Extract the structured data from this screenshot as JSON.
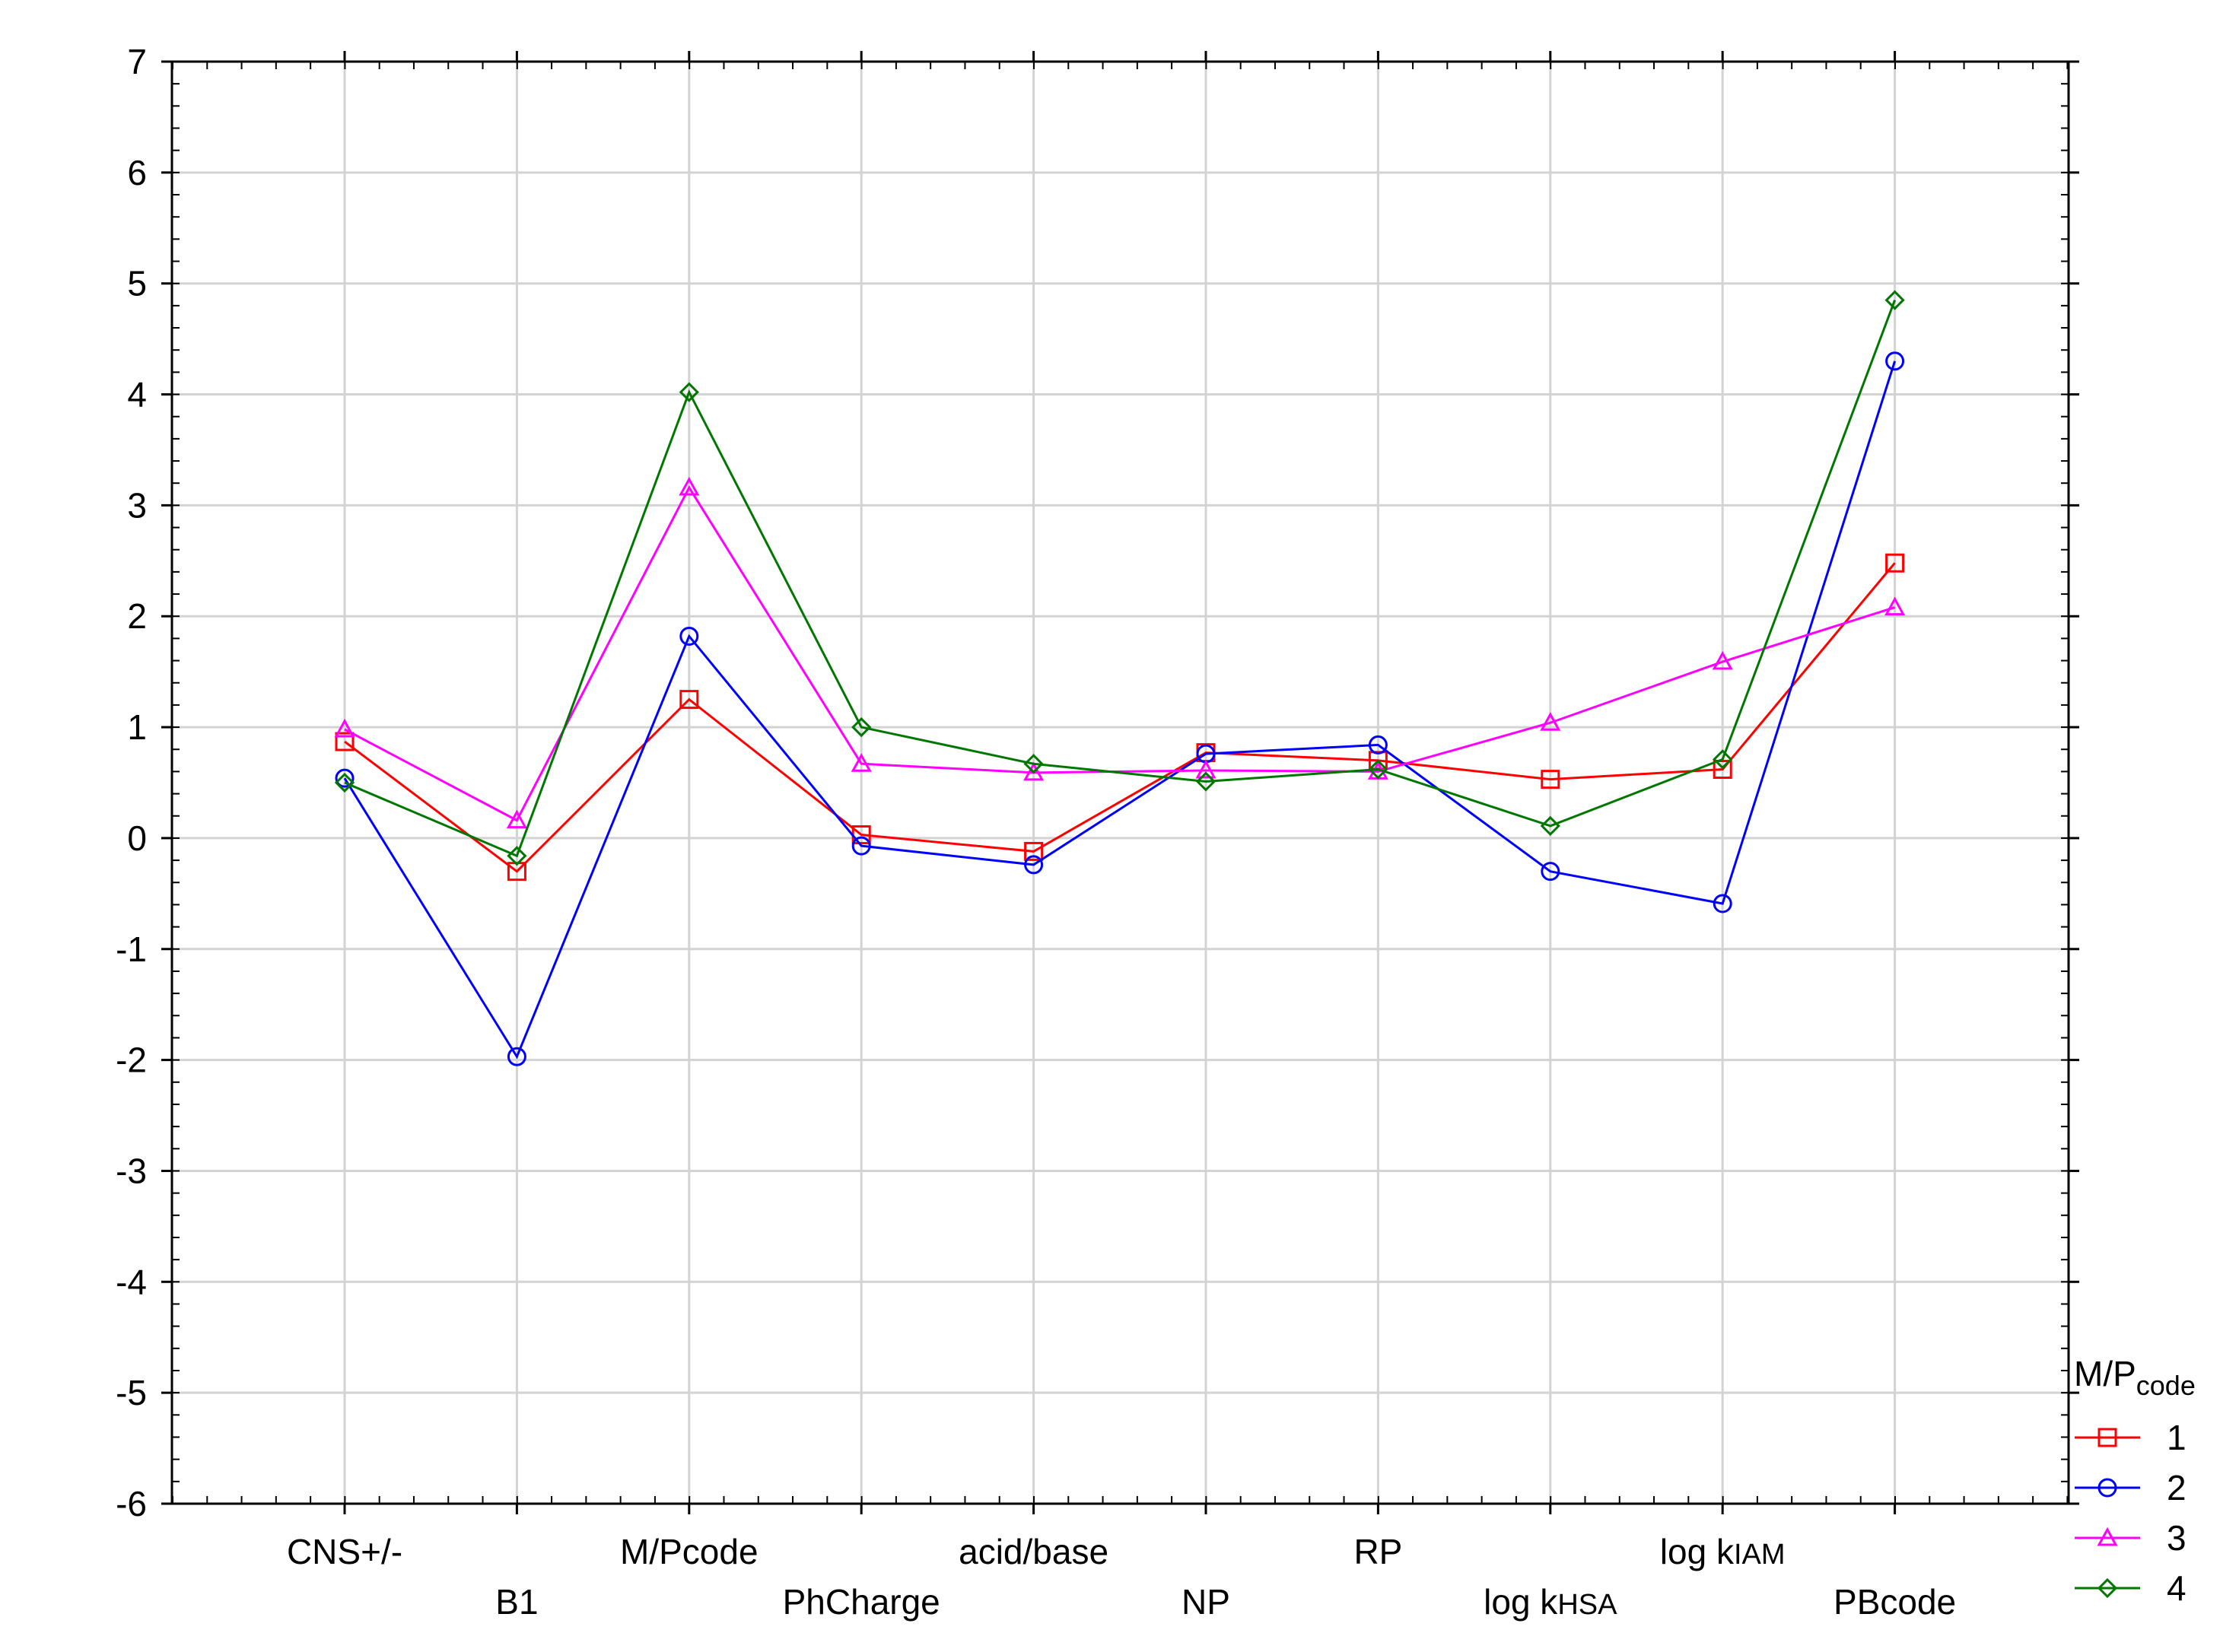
{
  "chart_data": {
    "type": "line",
    "title": "",
    "xlabel": "",
    "ylabel": "",
    "ylim": [
      -6,
      7
    ],
    "yticks": [
      7,
      6,
      5,
      4,
      3,
      2,
      1,
      0,
      -1,
      -2,
      -3,
      -4,
      -5,
      -6
    ],
    "ytick_labels": [
      "7",
      "6",
      "5",
      "4",
      "3",
      "2",
      "1",
      "0",
      "-1",
      "-2",
      "-3",
      "-4",
      "-5",
      "-6"
    ],
    "grid": true,
    "categories": [
      {
        "label": "CNS+/-",
        "sub": ""
      },
      {
        "label": "B1",
        "sub": ""
      },
      {
        "label": "M/Pcode",
        "sub": ""
      },
      {
        "label": "PhCharge",
        "sub": ""
      },
      {
        "label": "acid/base",
        "sub": ""
      },
      {
        "label": "NP",
        "sub": ""
      },
      {
        "label": "RP",
        "sub": ""
      },
      {
        "label": "log k",
        "sub": "HSA"
      },
      {
        "label": "log k",
        "sub": "IAM"
      },
      {
        "label": "PBcode",
        "sub": ""
      }
    ],
    "legend": {
      "title": "M/P",
      "title_sub": "code",
      "position": "right-bottom"
    },
    "series": [
      {
        "name": "1",
        "color": "#ff0000",
        "marker": "square",
        "values": [
          0.87,
          -0.3,
          1.25,
          0.03,
          -0.12,
          0.77,
          0.7,
          0.53,
          0.62,
          2.48
        ]
      },
      {
        "name": "2",
        "color": "#0000ff",
        "marker": "circle",
        "values": [
          0.54,
          -1.97,
          1.82,
          -0.07,
          -0.24,
          0.76,
          0.84,
          -0.3,
          -0.59,
          4.3
        ]
      },
      {
        "name": "3",
        "color": "#ff00ff",
        "marker": "triangle",
        "values": [
          0.98,
          0.16,
          3.16,
          0.67,
          0.59,
          0.61,
          0.6,
          1.04,
          1.59,
          2.08
        ]
      },
      {
        "name": "4",
        "color": "#007700",
        "marker": "diamond",
        "values": [
          0.5,
          -0.16,
          4.02,
          1.0,
          0.67,
          0.51,
          0.62,
          0.11,
          0.71,
          4.85
        ]
      }
    ]
  }
}
